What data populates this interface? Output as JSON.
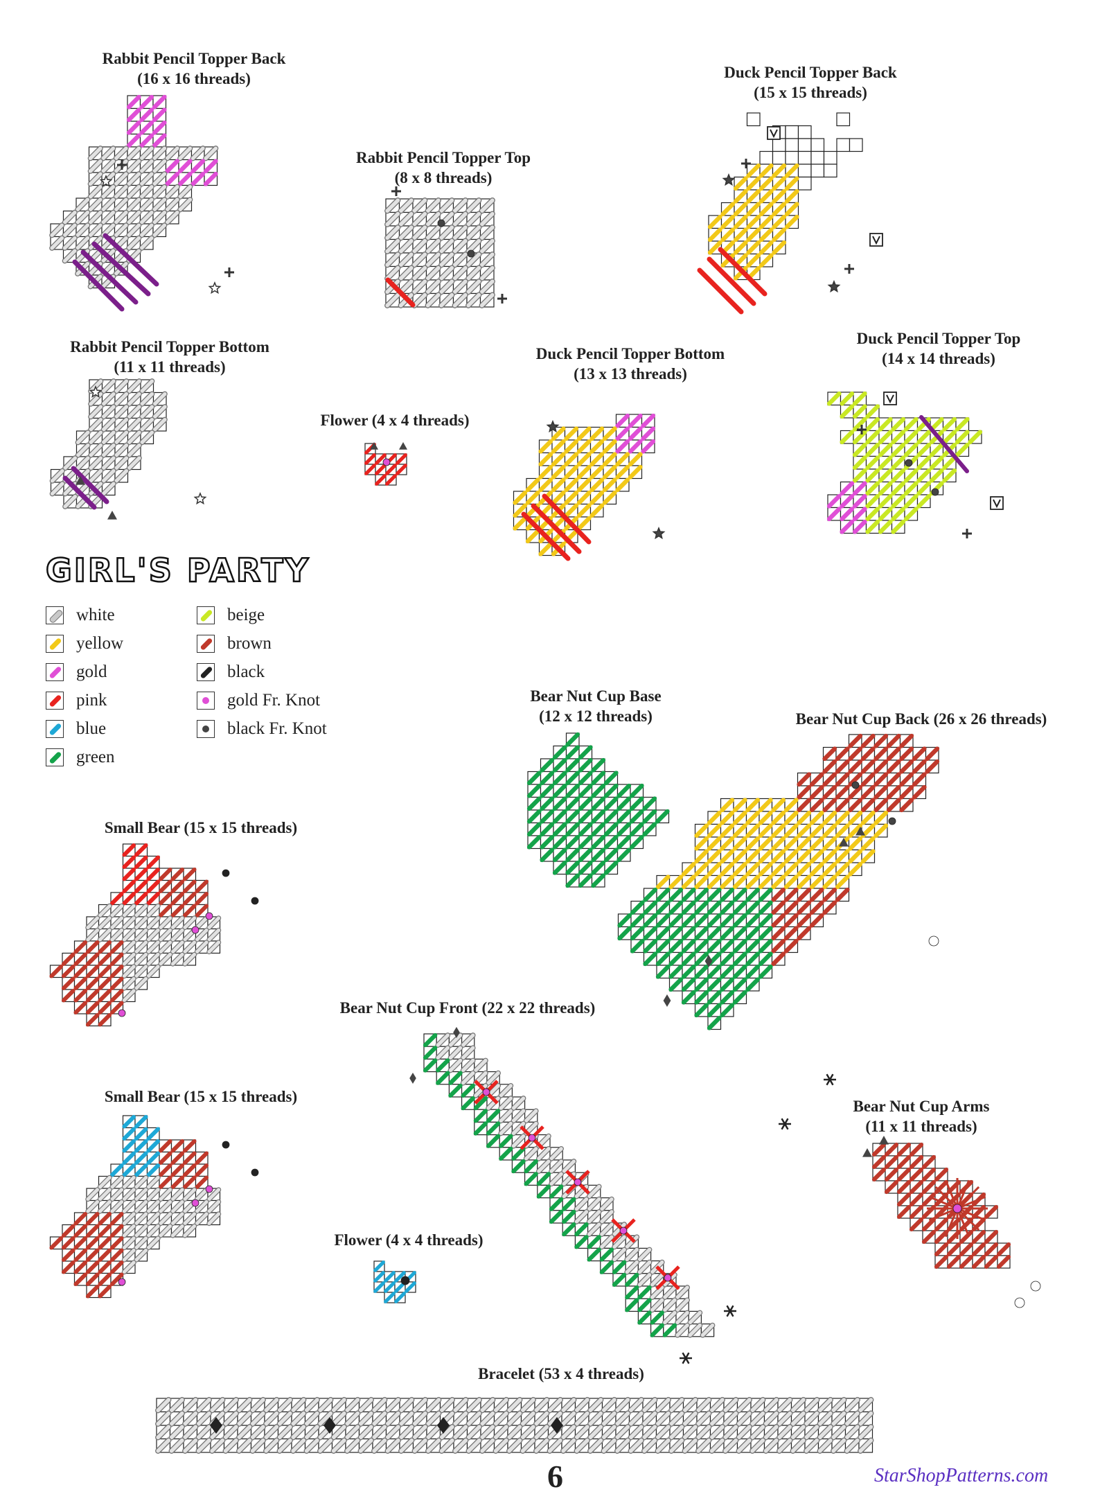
{
  "title": "GIRL'S PARTY",
  "page_number": "6",
  "website": "StarShopPatterns.com",
  "legend": [
    {
      "label": "white",
      "color": "#c9c9c9",
      "type": "stitch"
    },
    {
      "label": "yellow",
      "color": "#f2c919",
      "type": "stitch"
    },
    {
      "label": "gold",
      "color": "#e04fd6",
      "type": "stitch"
    },
    {
      "label": "pink",
      "color": "#e8231f",
      "type": "stitch"
    },
    {
      "label": "blue",
      "color": "#1ea8d6",
      "type": "stitch"
    },
    {
      "label": "green",
      "color": "#14a34a",
      "type": "stitch"
    },
    {
      "label": "beige",
      "color": "#c9e824",
      "type": "stitch"
    },
    {
      "label": "brown",
      "color": "#c0392b",
      "type": "stitch"
    },
    {
      "label": "black",
      "color": "#222222",
      "type": "stitch"
    },
    {
      "label": "gold Fr. Knot",
      "color": "#e04fd6",
      "type": "knot"
    },
    {
      "label": "black Fr. Knot",
      "color": "#444444",
      "type": "knot"
    }
  ],
  "pieces": [
    {
      "id": "rabbit-back",
      "name": "Rabbit Pencil Topper Back",
      "size": "(16 x 16 threads)"
    },
    {
      "id": "rabbit-top",
      "name": "Rabbit Pencil Topper Top",
      "size": "(8 x 8 threads)"
    },
    {
      "id": "duck-back",
      "name": "Duck Pencil Topper Back",
      "size": "(15 x 15 threads)"
    },
    {
      "id": "rabbit-bottom",
      "name": "Rabbit Pencil Topper Bottom",
      "size": "(11 x 11 threads)"
    },
    {
      "id": "flower-1",
      "name": "Flower (4 x 4 threads)",
      "size": ""
    },
    {
      "id": "duck-bottom",
      "name": "Duck Pencil Topper Bottom",
      "size": "(13 x 13 threads)"
    },
    {
      "id": "duck-top",
      "name": "Duck Pencil Topper Top",
      "size": "(14 x 14 threads)"
    },
    {
      "id": "bear-base",
      "name": "Bear Nut Cup Base",
      "size": "(12 x 12 threads)"
    },
    {
      "id": "bear-back",
      "name": "Bear Nut Cup Back (26 x 26 threads)",
      "size": ""
    },
    {
      "id": "small-bear-1",
      "name": "Small Bear (15 x 15 threads)",
      "size": ""
    },
    {
      "id": "bear-front",
      "name": "Bear Nut Cup Front (22 x 22 threads)",
      "size": ""
    },
    {
      "id": "small-bear-2",
      "name": "Small Bear (15 x 15 threads)",
      "size": ""
    },
    {
      "id": "flower-2",
      "name": "Flower (4 x 4 threads)",
      "size": ""
    },
    {
      "id": "bear-arms",
      "name": "Bear Nut Cup Arms",
      "size": "(11 x 11 threads)"
    },
    {
      "id": "bracelet",
      "name": "Bracelet (53 x 4 threads)",
      "size": ""
    }
  ]
}
